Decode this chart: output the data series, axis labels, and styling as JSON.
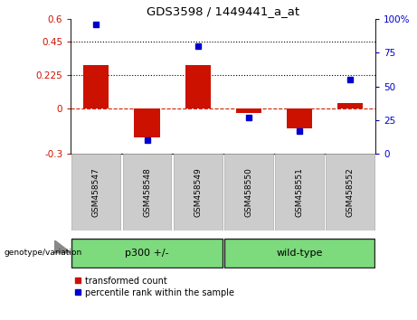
{
  "title": "GDS3598 / 1449441_a_at",
  "categories": [
    "GSM458547",
    "GSM458548",
    "GSM458549",
    "GSM458550",
    "GSM458551",
    "GSM458552"
  ],
  "red_values": [
    0.29,
    -0.19,
    0.295,
    -0.03,
    -0.13,
    0.04
  ],
  "blue_pct": [
    96,
    10,
    80,
    27,
    17,
    55
  ],
  "ylim_left": [
    -0.3,
    0.6
  ],
  "ylim_right": [
    0,
    100
  ],
  "yticks_left": [
    -0.3,
    0,
    0.225,
    0.45,
    0.6
  ],
  "ytick_labels_left": [
    "-0.3",
    "0",
    "0.225",
    "0.45",
    "0.6"
  ],
  "yticks_right": [
    0,
    25,
    50,
    75,
    100
  ],
  "ytick_labels_right": [
    "0",
    "25",
    "50",
    "75",
    "100%"
  ],
  "hlines_dotted": [
    0.225,
    0.45
  ],
  "bar_color": "#cc1100",
  "dot_color": "#0000cc",
  "zero_line_color": "#cc2200",
  "group1_label": "p300 +/-",
  "group2_label": "wild-type",
  "group_color": "#7dda7d",
  "group_label_prefix": "genotype/variation",
  "legend_red": "transformed count",
  "legend_blue": "percentile rank within the sample",
  "bar_width": 0.5,
  "sample_box_color": "#cccccc",
  "group_split": 3,
  "n": 6
}
